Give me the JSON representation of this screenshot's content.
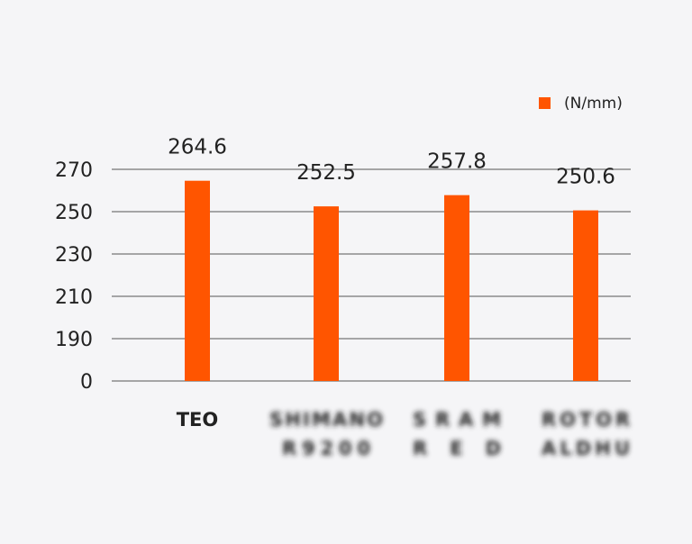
{
  "chart_data": {
    "type": "bar",
    "legend": {
      "label": "(N/mm)",
      "color": "#ff5500",
      "position": "top-right"
    },
    "categories": [
      {
        "lines": [
          "TEO"
        ],
        "blurred": false
      },
      {
        "lines": [
          "SHIMANO",
          "R9200"
        ],
        "blurred": true
      },
      {
        "lines": [
          "SRAM",
          "RED"
        ],
        "blurred": true
      },
      {
        "lines": [
          "ROTOR",
          "ALDHU"
        ],
        "blurred": true
      }
    ],
    "values": [
      264.6,
      252.5,
      257.8,
      250.6
    ],
    "data_labels": [
      "264.6",
      "252.5",
      "257.8",
      "250.6"
    ],
    "y_ticks": [
      "0",
      "190",
      "210",
      "230",
      "250",
      "270"
    ],
    "y_tick_values": [
      0,
      190,
      210,
      230,
      250,
      270
    ],
    "axis_break": true,
    "grid": true,
    "colors": {
      "bar": "#ff5500",
      "grid": "#555555",
      "text": "#222222",
      "background": "#f5f5f7"
    }
  }
}
